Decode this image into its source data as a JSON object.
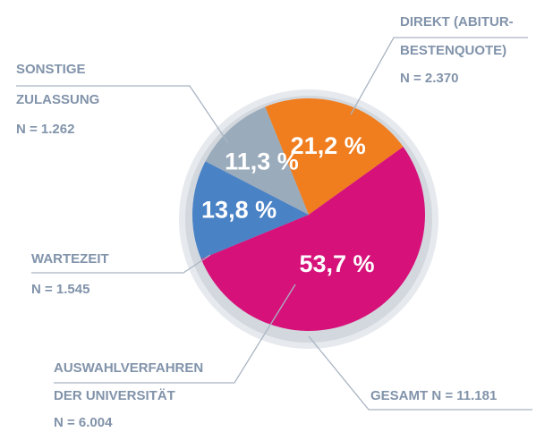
{
  "chart_data": {
    "type": "pie",
    "categories": [
      [
        "DIREKT (ABITUR-",
        "BESTENQUOTE)"
      ],
      [
        "AUSWAHLVERFAHREN",
        "DER UNIVERSITÄT"
      ],
      [
        "WARTEZEIT"
      ],
      [
        "SONSTIGE",
        "ZULASSUNG"
      ]
    ],
    "counts": [
      "N = 2.370",
      "N = 6.004",
      "N = 1.545",
      "N = 1.262"
    ],
    "values": [
      21.2,
      53.7,
      13.8,
      11.3
    ],
    "value_labels": [
      "21,2 %",
      "53,7 %",
      "13,8 %",
      "11,3 %"
    ],
    "colors": [
      "#f07d1e",
      "#d6127a",
      "#4a82c6",
      "#9aabbb"
    ],
    "total_label": "GESAMT N = 11.181"
  }
}
